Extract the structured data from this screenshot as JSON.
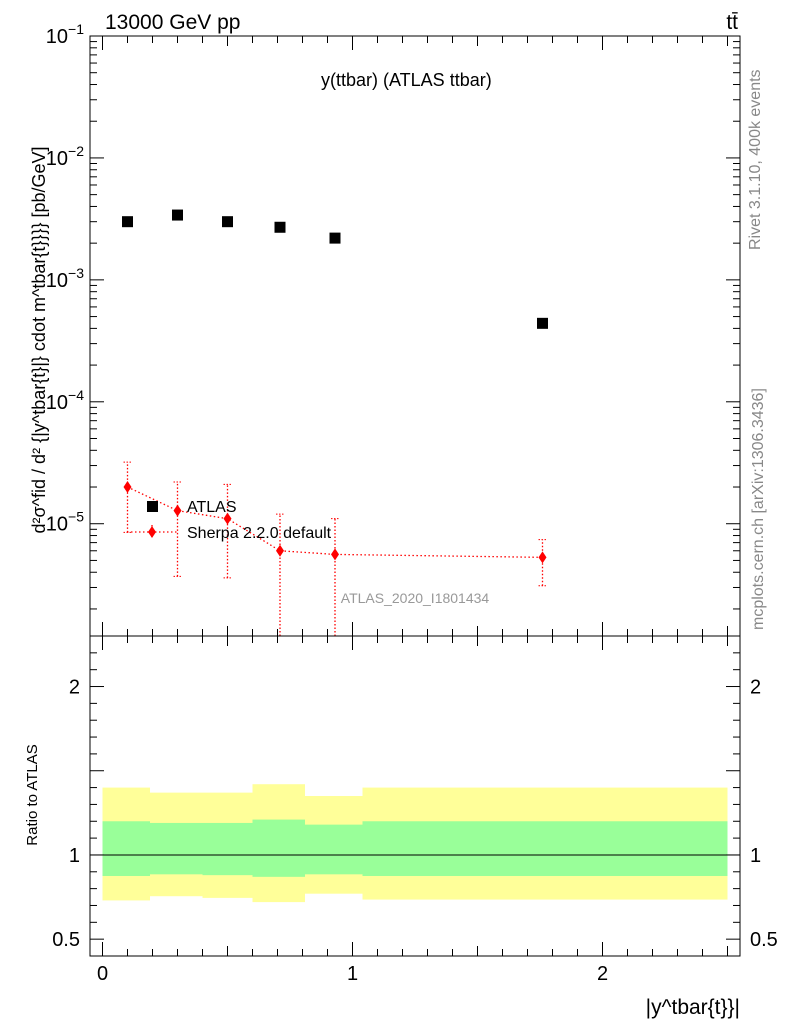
{
  "header": {
    "left": "13000 GeV pp",
    "right": "tt̄"
  },
  "side_labels": {
    "rivet": "Rivet 3.1.10,  400k events",
    "mcplots": "mcplots.cern.ch [arXiv:1306.3436]"
  },
  "watermark": "ATLAS_2020_I1801434",
  "chart_data": [
    {
      "type": "scatter",
      "title": "y(ttbar) (ATLAS ttbar)",
      "ylabel": "d²σ^fid / d² {|y^tbar{t}|} cdot m^tbar{t}}}} [pb/GeV]",
      "yscale": "log",
      "ylim": [
        1.2e-06,
        0.1
      ],
      "xlim": [
        -0.05,
        2.55
      ],
      "y_ticklabels": [
        "10^-5",
        "10^-4",
        "10^-3",
        "10^-2",
        "10^-1"
      ],
      "legend_position": "lower-left",
      "series": [
        {
          "name": "ATLAS",
          "color": "#000000",
          "marker": "square",
          "x": [
            0.1,
            0.3,
            0.5,
            0.71,
            0.93,
            1.76
          ],
          "y": [
            0.003,
            0.0034,
            0.003,
            0.0027,
            0.0022,
            0.00044
          ]
        },
        {
          "name": "Sherpa 2.2.0 default",
          "color": "#ff0000",
          "marker": "diamond",
          "line": "dotted",
          "x": [
            0.1,
            0.3,
            0.5,
            0.71,
            0.93,
            1.76
          ],
          "y": [
            2e-05,
            1.28e-05,
            1.1e-05,
            6e-06,
            5.6e-06,
            5.3e-06
          ],
          "yerr_low": [
            8.5e-06,
            3.7e-06,
            3.6e-06,
            1e-06,
            1e-06,
            3.1e-06
          ],
          "yerr_high": [
            3.2e-05,
            2.2e-05,
            2.1e-05,
            1.2e-05,
            1.1e-05,
            7.4e-06
          ]
        }
      ]
    },
    {
      "type": "area",
      "ylabel": "Ratio to ATLAS",
      "xlabel": "|y^tbar{t}}|",
      "ylim": [
        0.4,
        2.3
      ],
      "xlim": [
        -0.05,
        2.55
      ],
      "x_ticklabels": [
        "0",
        "1",
        "2"
      ],
      "y_ticklabels": [
        "0.5",
        "1",
        "2"
      ],
      "reference_line": 1.0,
      "bins": [
        0.0,
        0.19,
        0.4,
        0.6,
        0.81,
        1.04,
        2.5
      ],
      "band_inner": {
        "color": "#99ff99",
        "low": [
          0.875,
          0.885,
          0.88,
          0.87,
          0.885,
          0.875
        ],
        "high": [
          1.2,
          1.19,
          1.19,
          1.21,
          1.18,
          1.2
        ]
      },
      "band_outer": {
        "color": "#ffff99",
        "low": [
          0.73,
          0.755,
          0.745,
          0.72,
          0.77,
          0.735
        ],
        "high": [
          1.4,
          1.37,
          1.37,
          1.42,
          1.35,
          1.4
        ]
      }
    }
  ]
}
